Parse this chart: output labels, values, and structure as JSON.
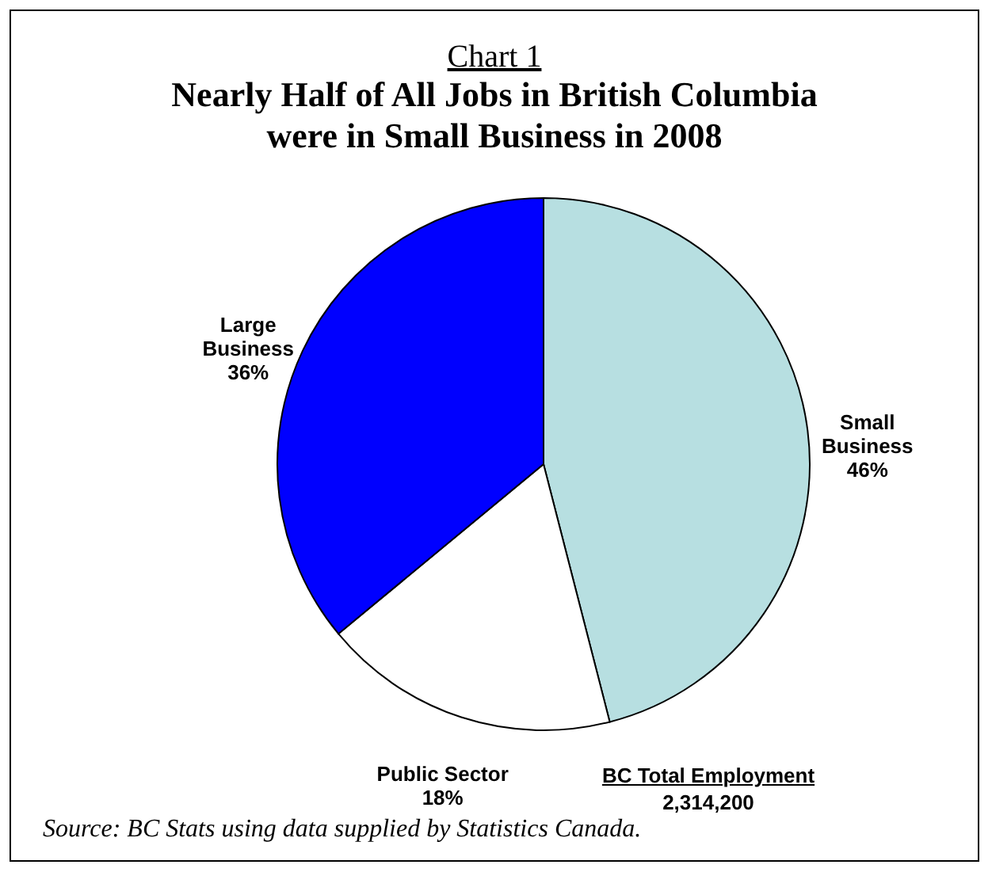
{
  "chart_data": {
    "type": "pie",
    "subtitle": "Chart 1",
    "title": "Nearly Half of All Jobs in British Columbia\nwere in Small Business in 2008",
    "categories": [
      "Small\nBusiness",
      "Public Sector",
      "Large\nBusiness"
    ],
    "values": [
      46,
      18,
      36
    ],
    "colors": [
      "#b7dfe1",
      "#ffffff",
      "#0000ff"
    ],
    "value_labels": [
      "46%",
      "18%",
      "36%"
    ],
    "annotations": [
      "BC Total Employment",
      "2,314,200",
      "Source:  BC Stats using data supplied by Statistics Canada."
    ]
  }
}
